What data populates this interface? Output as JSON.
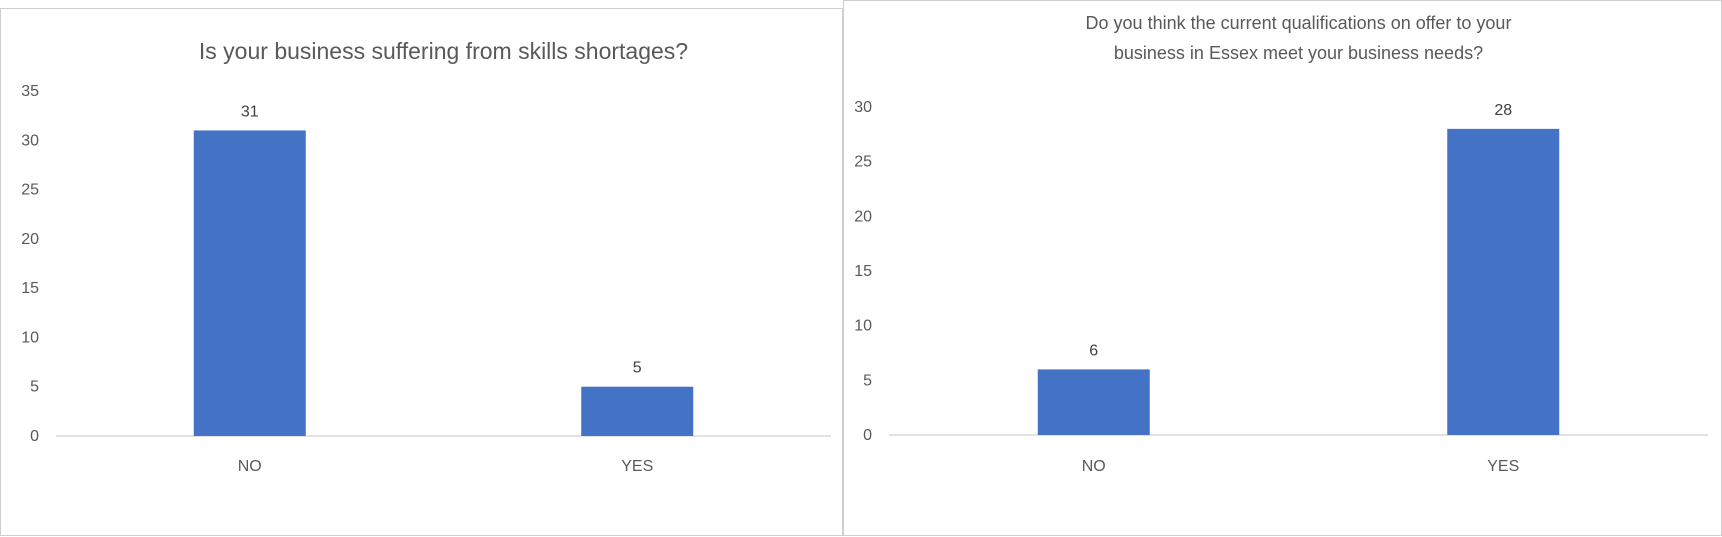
{
  "colors": {
    "bar": "#4472C4",
    "axis": "#d9d9d9",
    "text": "#595959"
  },
  "chart_data": [
    {
      "type": "bar",
      "title": "Is your business suffering from skills shortages?",
      "categories": [
        "NO",
        "YES"
      ],
      "values": [
        31,
        5
      ],
      "ylim": [
        0,
        35
      ],
      "yticks": [
        0,
        5,
        10,
        15,
        20,
        25,
        30,
        35
      ],
      "data_labels": true,
      "grid": false
    },
    {
      "type": "bar",
      "title": "Do you think the current qualifications on offer to your business in Essex meet your business needs?",
      "title_lines": [
        "Do you think the current qualifications on offer to your",
        "business in Essex meet your business needs?"
      ],
      "categories": [
        "NO",
        "YES"
      ],
      "values": [
        6,
        28
      ],
      "ylim": [
        0,
        30
      ],
      "yticks": [
        0,
        5,
        10,
        15,
        20,
        25,
        30
      ],
      "data_labels": true,
      "grid": false
    }
  ]
}
